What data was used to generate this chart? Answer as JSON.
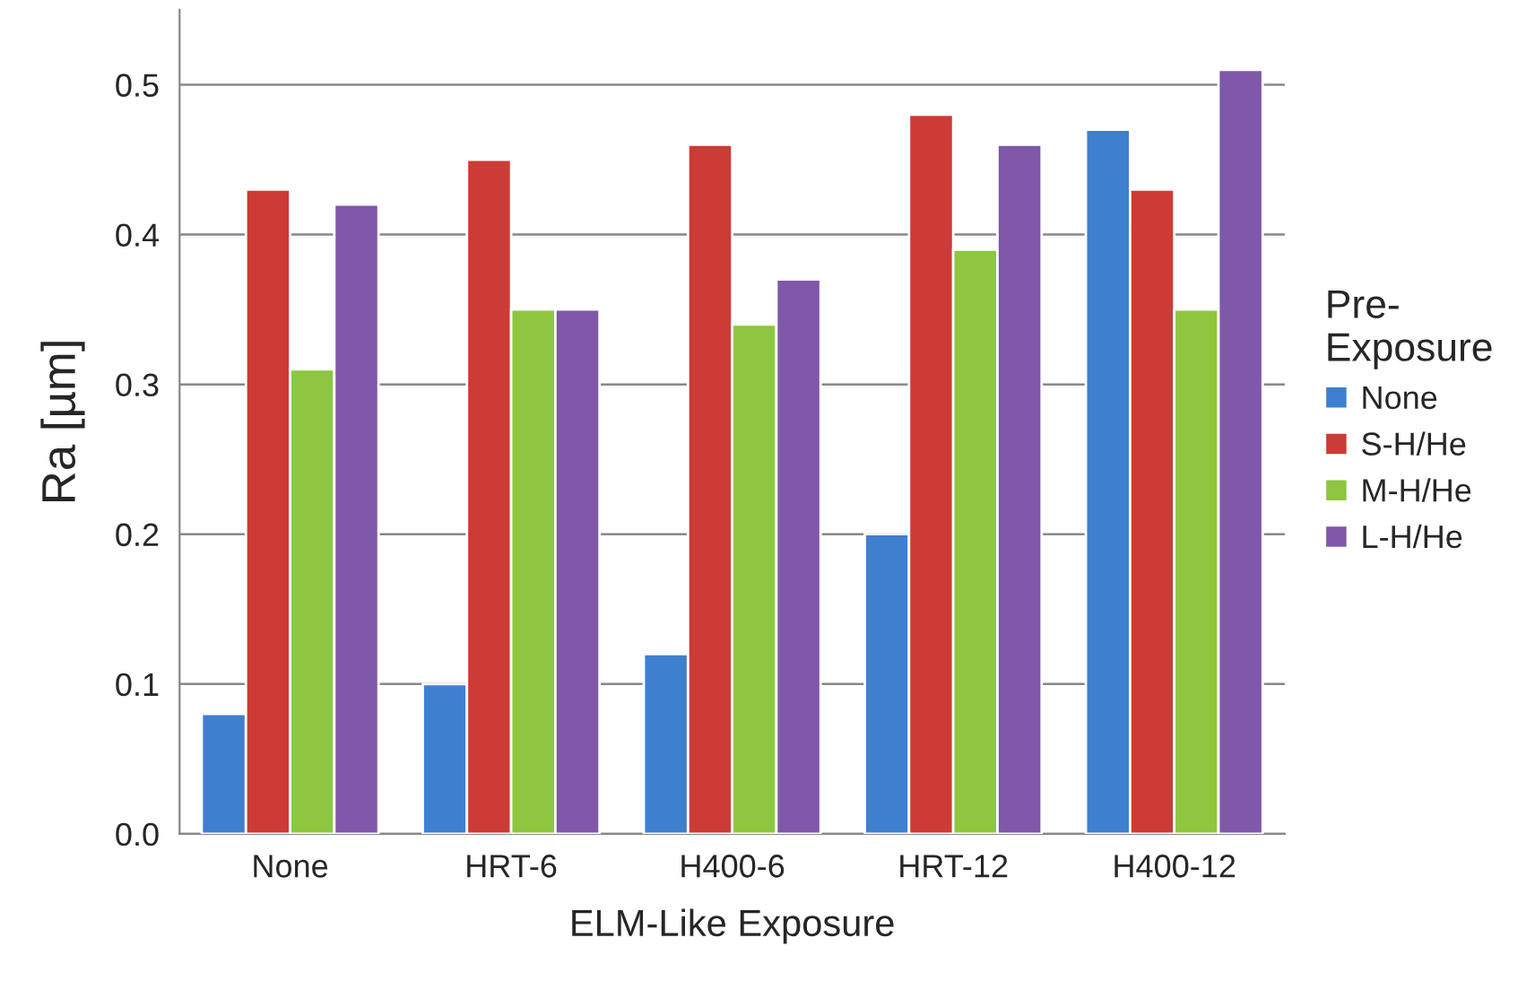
{
  "chart_data": {
    "type": "bar",
    "xlabel": "ELM-Like Exposure",
    "ylabel": "Ra [µm]",
    "legend_title": "Pre-\nExposure",
    "categories": [
      "None",
      "HRT-6",
      "H400-6",
      "HRT-12",
      "H400-12"
    ],
    "series": [
      {
        "name": "None",
        "color": "#3f7fd0",
        "values": [
          0.08,
          0.1,
          0.12,
          0.2,
          0.47
        ]
      },
      {
        "name": "S-H/He",
        "color": "#cc3b35",
        "values": [
          0.43,
          0.45,
          0.46,
          0.48,
          0.43
        ]
      },
      {
        "name": "M-H/He",
        "color": "#8dc63f",
        "values": [
          0.31,
          0.35,
          0.34,
          0.39,
          0.35
        ]
      },
      {
        "name": "L-H/He",
        "color": "#7f58a9",
        "values": [
          0.42,
          0.35,
          0.37,
          0.46,
          0.51
        ]
      }
    ],
    "ylim": [
      0,
      0.55
    ],
    "yticks": [
      {
        "value": 0,
        "label": "0.0"
      },
      0.1,
      0.2,
      0.3,
      0.4,
      0.5
    ],
    "grid": "y",
    "legend": "right"
  }
}
